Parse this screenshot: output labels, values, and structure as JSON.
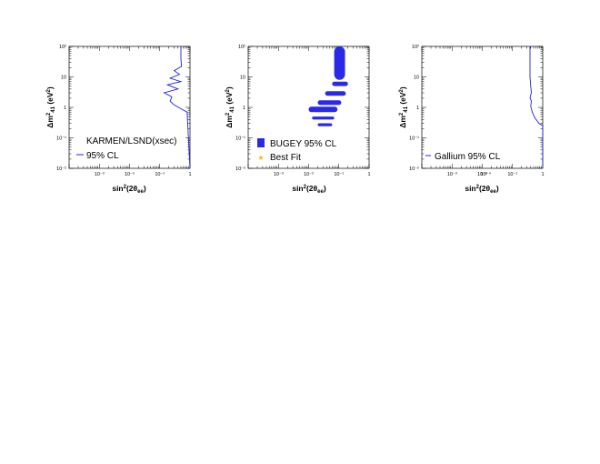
{
  "colors": {
    "contour": "#1f1ff0",
    "fill": "#2a2ae6",
    "best_fit": "#f0c000",
    "axis": "#000000"
  },
  "chart_data": [
    {
      "type": "line",
      "xlabel": "sin²(2θee)",
      "ylabel": "Δm²41 (eV²)",
      "x_scale": "log",
      "y_scale": "log",
      "xlim": [
        0.0001,
        1
      ],
      "ylim": [
        0.01,
        100
      ],
      "x_ticks": [
        "10⁻³",
        "10⁻²",
        "10⁻¹",
        "1"
      ],
      "y_ticks": [
        "10⁻²",
        "10⁻¹",
        "1",
        "10",
        "10²"
      ],
      "legend_placement": "bottom-left",
      "legend": [
        "KARMEN/LSND(xsec)",
        "95% CL"
      ],
      "series": [
        {
          "name": "95% CL",
          "x": [
            0.5,
            0.5,
            0.52,
            0.3,
            0.45,
            0.22,
            0.5,
            0.18,
            0.4,
            0.14,
            0.25,
            0.22,
            0.3,
            0.5,
            0.8,
            1.0
          ],
          "y": [
            100,
            40,
            22,
            16,
            12,
            9,
            7,
            5.5,
            4,
            3,
            2.2,
            1.6,
            1.2,
            0.9,
            0.7,
            0.01
          ]
        }
      ]
    },
    {
      "type": "area",
      "xlabel": "sin²(2θee)",
      "ylabel": "Δm²41 (eV²)",
      "x_scale": "log",
      "y_scale": "log",
      "xlim": [
        0.0001,
        1
      ],
      "ylim": [
        0.01,
        100
      ],
      "x_ticks": [
        "10⁻³",
        "10⁻²",
        "10⁻¹",
        "1"
      ],
      "y_ticks": [
        "10⁻²",
        "10⁻¹",
        "1",
        "10",
        "10²"
      ],
      "legend_placement": "bottom-left",
      "legend": [
        "BUGEY 95% CL",
        "Best Fit"
      ],
      "regions": [
        {
          "x_range": [
            0.07,
            0.16
          ],
          "y_range": [
            8,
            100
          ]
        },
        {
          "x_range": [
            0.06,
            0.2
          ],
          "y_range": [
            5,
            7
          ]
        },
        {
          "x_range": [
            0.035,
            0.17
          ],
          "y_range": [
            2.4,
            3.4
          ]
        },
        {
          "x_range": [
            0.02,
            0.12
          ],
          "y_range": [
            1.2,
            1.7
          ]
        },
        {
          "x_range": [
            0.01,
            0.09
          ],
          "y_range": [
            0.7,
            1.05
          ]
        },
        {
          "x_range": [
            0.013,
            0.07
          ],
          "y_range": [
            0.4,
            0.5
          ]
        },
        {
          "x_range": [
            0.02,
            0.06
          ],
          "y_range": [
            0.24,
            0.3
          ]
        }
      ]
    },
    {
      "type": "line",
      "xlabel": "sin²(2θee)",
      "ylabel": "Δm²41 (eV²)",
      "x_scale": "log",
      "y_scale": "log",
      "xlim": [
        0.0001,
        1
      ],
      "ylim": [
        0.01,
        100
      ],
      "x_ticks": [
        "10⁻³",
        "10⁻²",
        "10⁻¹",
        "10⁻¹",
        "1"
      ],
      "x_ticks_note": "",
      "y_ticks": [
        "10⁻²",
        "10⁻¹",
        "1",
        "10",
        "10²"
      ],
      "legend_placement": "bottom-left",
      "legend": [
        "Gallium 95% CL"
      ],
      "series": [
        {
          "name": "Gallium 95% CL",
          "x": [
            0.38,
            0.38,
            0.4,
            0.42,
            0.38,
            0.42,
            0.4,
            0.45,
            0.55,
            0.75,
            1.0,
            1.0
          ],
          "y": [
            100,
            10,
            5,
            3,
            2.1,
            1.6,
            1.1,
            0.7,
            0.45,
            0.3,
            0.25,
            0.01
          ]
        }
      ]
    }
  ]
}
